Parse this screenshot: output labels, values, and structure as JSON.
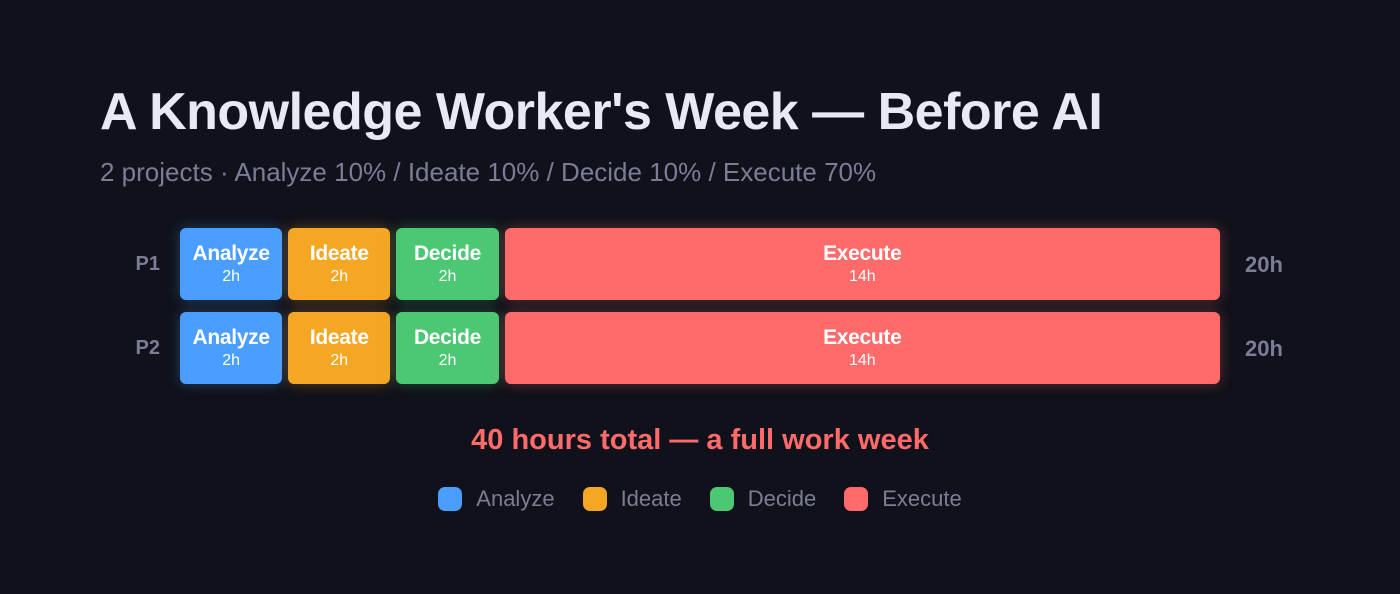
{
  "title": "A Knowledge Worker's Week — Before AI",
  "subtitle": "2 projects · Analyze 10% / Ideate 10% / Decide 10% / Execute 70%",
  "total_note": "40 hours total — a full work week",
  "colors": {
    "Analyze": "#4a9eff",
    "Ideate": "#f5a623",
    "Decide": "#4cc874",
    "Execute": "#ff6b6b"
  },
  "chart_data": {
    "type": "bar",
    "orientation": "horizontal",
    "stacked": true,
    "categories": [
      "P1",
      "P2"
    ],
    "series": [
      {
        "name": "Analyze",
        "values": [
          2,
          2
        ],
        "labels": [
          "2h",
          "2h"
        ]
      },
      {
        "name": "Ideate",
        "values": [
          2,
          2
        ],
        "labels": [
          "2h",
          "2h"
        ]
      },
      {
        "name": "Decide",
        "values": [
          2,
          2
        ],
        "labels": [
          "2h",
          "2h"
        ]
      },
      {
        "name": "Execute",
        "values": [
          14,
          14
        ],
        "labels": [
          "14h",
          "14h"
        ]
      }
    ],
    "row_totals": [
      "20h",
      "20h"
    ],
    "legend": [
      "Analyze",
      "Ideate",
      "Decide",
      "Execute"
    ],
    "legend_position": "bottom-center",
    "grid": false
  }
}
